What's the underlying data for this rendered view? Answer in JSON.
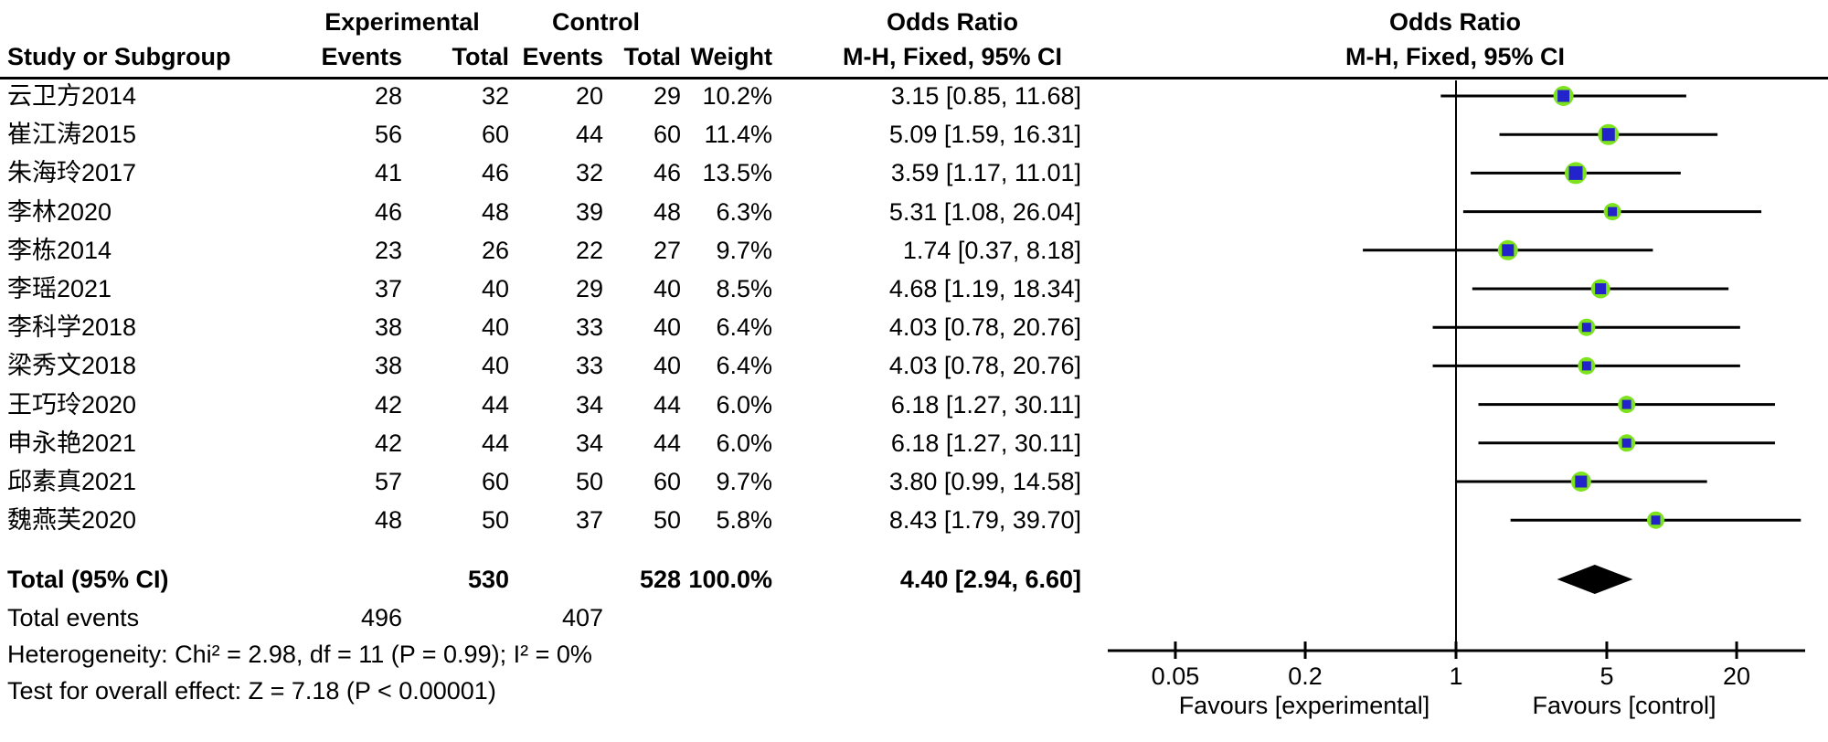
{
  "chart_data": {
    "type": "forest-plot",
    "effect_measure": "Odds Ratio, M-H Fixed, 95% CI",
    "header": {
      "study": "Study or Subgroup",
      "group1": "Experimental",
      "group2": "Control",
      "events": "Events",
      "total": "Total",
      "weight": "Weight",
      "or_title": "Odds Ratio",
      "mh_subtitle": "M-H, Fixed, 95% CI"
    },
    "studies": [
      {
        "name": "云卫方2014",
        "exp_events": 28,
        "exp_total": 32,
        "ctl_events": 20,
        "ctl_total": 29,
        "weight": "10.2%",
        "ci_label": "3.15 [0.85, 11.68]",
        "or": 3.15,
        "ci_low": 0.85,
        "ci_high": 11.68
      },
      {
        "name": "崔江涛2015",
        "exp_events": 56,
        "exp_total": 60,
        "ctl_events": 44,
        "ctl_total": 60,
        "weight": "11.4%",
        "ci_label": "5.09 [1.59, 16.31]",
        "or": 5.09,
        "ci_low": 1.59,
        "ci_high": 16.31
      },
      {
        "name": "朱海玲2017",
        "exp_events": 41,
        "exp_total": 46,
        "ctl_events": 32,
        "ctl_total": 46,
        "weight": "13.5%",
        "ci_label": "3.59 [1.17, 11.01]",
        "or": 3.59,
        "ci_low": 1.17,
        "ci_high": 11.01
      },
      {
        "name": "李林2020",
        "exp_events": 46,
        "exp_total": 48,
        "ctl_events": 39,
        "ctl_total": 48,
        "weight": "6.3%",
        "ci_label": "5.31 [1.08, 26.04]",
        "or": 5.31,
        "ci_low": 1.08,
        "ci_high": 26.04
      },
      {
        "name": "李栋2014",
        "exp_events": 23,
        "exp_total": 26,
        "ctl_events": 22,
        "ctl_total": 27,
        "weight": "9.7%",
        "ci_label": "1.74 [0.37, 8.18]",
        "or": 1.74,
        "ci_low": 0.37,
        "ci_high": 8.18
      },
      {
        "name": "李瑶2021",
        "exp_events": 37,
        "exp_total": 40,
        "ctl_events": 29,
        "ctl_total": 40,
        "weight": "8.5%",
        "ci_label": "4.68 [1.19, 18.34]",
        "or": 4.68,
        "ci_low": 1.19,
        "ci_high": 18.34
      },
      {
        "name": "李科学2018",
        "exp_events": 38,
        "exp_total": 40,
        "ctl_events": 33,
        "ctl_total": 40,
        "weight": "6.4%",
        "ci_label": "4.03 [0.78, 20.76]",
        "or": 4.03,
        "ci_low": 0.78,
        "ci_high": 20.76
      },
      {
        "name": "梁秀文2018",
        "exp_events": 38,
        "exp_total": 40,
        "ctl_events": 33,
        "ctl_total": 40,
        "weight": "6.4%",
        "ci_label": "4.03 [0.78, 20.76]",
        "or": 4.03,
        "ci_low": 0.78,
        "ci_high": 20.76
      },
      {
        "name": "王巧玲2020",
        "exp_events": 42,
        "exp_total": 44,
        "ctl_events": 34,
        "ctl_total": 44,
        "weight": "6.0%",
        "ci_label": "6.18 [1.27, 30.11]",
        "or": 6.18,
        "ci_low": 1.27,
        "ci_high": 30.11
      },
      {
        "name": "申永艳2021",
        "exp_events": 42,
        "exp_total": 44,
        "ctl_events": 34,
        "ctl_total": 44,
        "weight": "6.0%",
        "ci_label": "6.18 [1.27, 30.11]",
        "or": 6.18,
        "ci_low": 1.27,
        "ci_high": 30.11
      },
      {
        "name": "邱素真2021",
        "exp_events": 57,
        "exp_total": 60,
        "ctl_events": 50,
        "ctl_total": 60,
        "weight": "9.7%",
        "ci_label": "3.80 [0.99, 14.58]",
        "or": 3.8,
        "ci_low": 0.99,
        "ci_high": 14.58
      },
      {
        "name": "魏燕芙2020",
        "exp_events": 48,
        "exp_total": 50,
        "ctl_events": 37,
        "ctl_total": 50,
        "weight": "5.8%",
        "ci_label": "8.43 [1.79, 39.70]",
        "or": 8.43,
        "ci_low": 1.79,
        "ci_high": 39.7
      }
    ],
    "total": {
      "label": "Total (95% CI)",
      "exp_total": 530,
      "ctl_total": 528,
      "weight": "100.0%",
      "ci_label": "4.40 [2.94, 6.60]",
      "or": 4.4,
      "ci_low": 2.94,
      "ci_high": 6.6
    },
    "total_events": {
      "label": "Total events",
      "exp": 496,
      "ctl": 407
    },
    "heterogeneity": "Heterogeneity: Chi² = 2.98, df = 11 (P = 0.99); I² = 0%",
    "overall_effect": "Test for overall effect: Z = 7.18 (P < 0.00001)",
    "axis": {
      "scale": "log",
      "ticks": [
        0.05,
        0.2,
        1,
        5,
        20
      ],
      "null_line": 1,
      "min": 0.024,
      "max": 41.6
    },
    "favours_left": "Favours [experimental]",
    "favours_right": "Favours [control]",
    "colors": {
      "marker_fill": "#2323cc",
      "marker_glow": "#7de31c",
      "ci_line": "#000000",
      "diamond": "#000000",
      "axis": "#000000"
    }
  }
}
